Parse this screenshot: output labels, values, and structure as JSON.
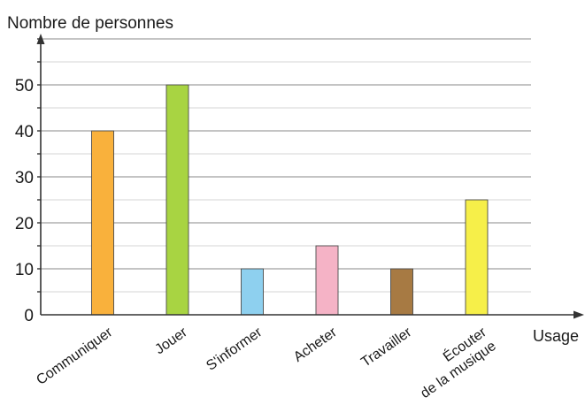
{
  "chart_data": {
    "type": "bar",
    "ylabel": "Nombre de personnes",
    "xlabel": "Usage",
    "categories": [
      "Communiquer",
      "Jouer",
      "S'informer",
      "Acheter",
      "Travailler",
      "Écouter de la musique"
    ],
    "category_lines": [
      [
        "Communiquer"
      ],
      [
        "Jouer"
      ],
      [
        "S'informer"
      ],
      [
        "Acheter"
      ],
      [
        "Travailler"
      ],
      [
        "Écouter",
        "de la musique"
      ]
    ],
    "values": [
      40,
      50,
      10,
      15,
      10,
      25
    ],
    "colors": [
      "#f9b13c",
      "#a8d442",
      "#8ed0ef",
      "#f5b3c6",
      "#a77a43",
      "#f6ef49"
    ],
    "yticks": [
      0,
      10,
      20,
      30,
      40,
      50
    ],
    "ylim": [
      0,
      60
    ],
    "grid": true,
    "legend": "none"
  }
}
